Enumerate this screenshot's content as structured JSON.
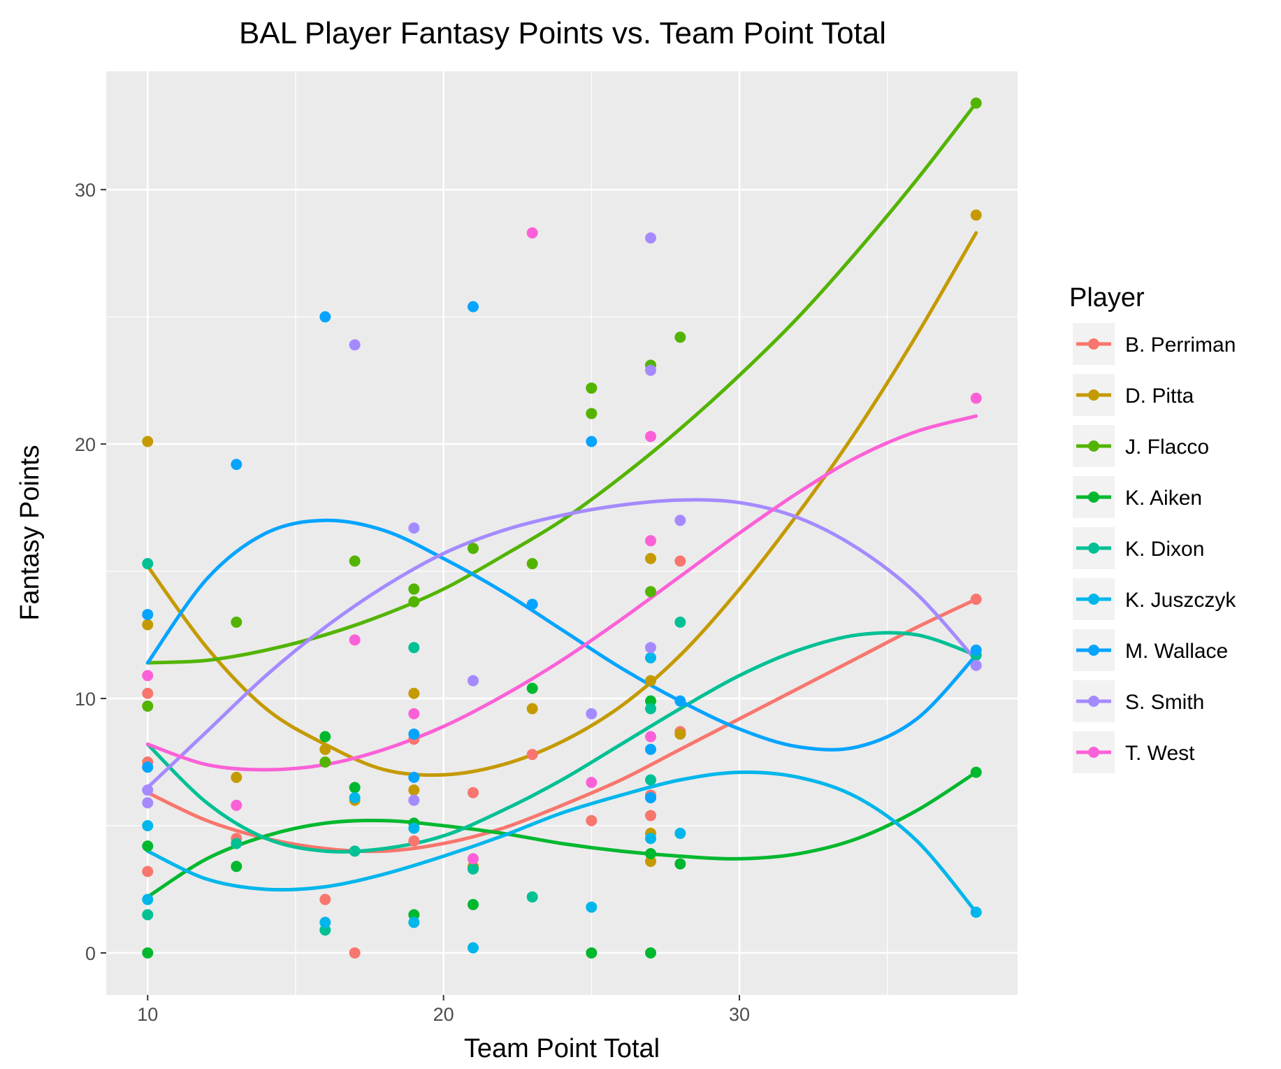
{
  "chart_data": {
    "type": "scatter",
    "title": "BAL Player Fantasy Points vs. Team Point Total",
    "xlabel": "Team Point Total",
    "ylabel": "Fantasy Points",
    "xlim": [
      8.6,
      39.4
    ],
    "ylim": [
      -1.65,
      34.65
    ],
    "xticks": [
      10,
      20,
      30
    ],
    "yticks": [
      0,
      10,
      20,
      30
    ],
    "grid": true,
    "legend": {
      "title": "Player",
      "placement": "right"
    },
    "series": [
      {
        "name": "B. Perriman",
        "color": "#F8766D",
        "points": [
          [
            10,
            10.2
          ],
          [
            10,
            7.5
          ],
          [
            10,
            3.2
          ],
          [
            13,
            4.5
          ],
          [
            16,
            2.1
          ],
          [
            17,
            0
          ],
          [
            19,
            8.4
          ],
          [
            19,
            4.4
          ],
          [
            21,
            6.3
          ],
          [
            23,
            7.8
          ],
          [
            25,
            5.2
          ],
          [
            27,
            6.2
          ],
          [
            27,
            5.4
          ],
          [
            28,
            15.4
          ],
          [
            28,
            8.7
          ],
          [
            38,
            13.9
          ]
        ],
        "fit": [
          [
            10,
            6.3
          ],
          [
            12,
            5.2
          ],
          [
            14,
            4.5
          ],
          [
            16,
            4.1
          ],
          [
            18,
            4.0
          ],
          [
            20,
            4.3
          ],
          [
            22,
            4.9
          ],
          [
            24,
            5.8
          ],
          [
            26,
            6.8
          ],
          [
            28,
            8.0
          ],
          [
            30,
            9.2
          ],
          [
            32,
            10.4
          ],
          [
            34,
            11.6
          ],
          [
            36,
            12.8
          ],
          [
            38,
            13.9
          ]
        ]
      },
      {
        "name": "D. Pitta",
        "color": "#C49A00",
        "points": [
          [
            10,
            20.1
          ],
          [
            10,
            12.9
          ],
          [
            13,
            6.9
          ],
          [
            16,
            8.0
          ],
          [
            17,
            6.0
          ],
          [
            19,
            10.2
          ],
          [
            19,
            6.4
          ],
          [
            21,
            3.4
          ],
          [
            23,
            9.6
          ],
          [
            25,
            22.2
          ],
          [
            27,
            15.5
          ],
          [
            27,
            10.7
          ],
          [
            27,
            4.7
          ],
          [
            27,
            3.6
          ],
          [
            28,
            8.6
          ],
          [
            38,
            29.0
          ]
        ],
        "fit": [
          [
            10,
            15.2
          ],
          [
            12,
            12.0
          ],
          [
            14,
            9.6
          ],
          [
            16,
            8.2
          ],
          [
            18,
            7.2
          ],
          [
            20,
            7.0
          ],
          [
            22,
            7.4
          ],
          [
            24,
            8.3
          ],
          [
            26,
            9.7
          ],
          [
            28,
            11.7
          ],
          [
            30,
            14.3
          ],
          [
            32,
            17.3
          ],
          [
            34,
            20.6
          ],
          [
            36,
            24.3
          ],
          [
            38,
            28.3
          ]
        ]
      },
      {
        "name": "J. Flacco",
        "color": "#53B400",
        "points": [
          [
            10,
            9.7
          ],
          [
            13,
            13.0
          ],
          [
            16,
            7.5
          ],
          [
            17,
            15.4
          ],
          [
            19,
            14.3
          ],
          [
            19,
            13.8
          ],
          [
            21,
            15.9
          ],
          [
            23,
            15.3
          ],
          [
            25,
            22.2
          ],
          [
            25,
            21.2
          ],
          [
            27,
            23.1
          ],
          [
            27,
            14.2
          ],
          [
            28,
            24.2
          ],
          [
            38,
            33.4
          ]
        ],
        "fit": [
          [
            10,
            11.4
          ],
          [
            12,
            11.5
          ],
          [
            14,
            11.9
          ],
          [
            16,
            12.5
          ],
          [
            18,
            13.3
          ],
          [
            20,
            14.3
          ],
          [
            22,
            15.6
          ],
          [
            24,
            17.0
          ],
          [
            26,
            18.7
          ],
          [
            28,
            20.6
          ],
          [
            30,
            22.7
          ],
          [
            32,
            25.0
          ],
          [
            34,
            27.6
          ],
          [
            36,
            30.4
          ],
          [
            38,
            33.4
          ]
        ]
      },
      {
        "name": "K. Aiken",
        "color": "#00B82E",
        "points": [
          [
            10,
            4.2
          ],
          [
            10,
            0
          ],
          [
            13,
            3.4
          ],
          [
            16,
            8.5
          ],
          [
            17,
            6.5
          ],
          [
            19,
            5.1
          ],
          [
            19,
            1.5
          ],
          [
            21,
            1.9
          ],
          [
            23,
            10.4
          ],
          [
            25,
            0
          ],
          [
            27,
            9.9
          ],
          [
            27,
            3.9
          ],
          [
            27,
            0
          ],
          [
            28,
            3.5
          ],
          [
            38,
            7.1
          ]
        ],
        "fit": [
          [
            10,
            2.2
          ],
          [
            12,
            3.7
          ],
          [
            14,
            4.6
          ],
          [
            16,
            5.1
          ],
          [
            18,
            5.2
          ],
          [
            20,
            5.0
          ],
          [
            22,
            4.7
          ],
          [
            24,
            4.3
          ],
          [
            26,
            4.0
          ],
          [
            28,
            3.8
          ],
          [
            30,
            3.7
          ],
          [
            32,
            3.9
          ],
          [
            34,
            4.5
          ],
          [
            36,
            5.6
          ],
          [
            38,
            7.1
          ]
        ]
      },
      {
        "name": "K. Dixon",
        "color": "#00C094",
        "points": [
          [
            10,
            15.3
          ],
          [
            10,
            1.5
          ],
          [
            13,
            4.3
          ],
          [
            16,
            0.9
          ],
          [
            17,
            4.0
          ],
          [
            19,
            12.0
          ],
          [
            21,
            3.3
          ],
          [
            23,
            2.2
          ],
          [
            27,
            9.6
          ],
          [
            27,
            6.8
          ],
          [
            28,
            13.0
          ],
          [
            38,
            11.7
          ]
        ],
        "fit": [
          [
            10,
            8.2
          ],
          [
            12,
            5.9
          ],
          [
            14,
            4.5
          ],
          [
            16,
            4.0
          ],
          [
            18,
            4.1
          ],
          [
            20,
            4.6
          ],
          [
            22,
            5.6
          ],
          [
            24,
            6.8
          ],
          [
            26,
            8.2
          ],
          [
            28,
            9.6
          ],
          [
            30,
            10.9
          ],
          [
            32,
            11.9
          ],
          [
            34,
            12.5
          ],
          [
            36,
            12.5
          ],
          [
            38,
            11.7
          ]
        ]
      },
      {
        "name": "K. Juszczyk",
        "color": "#00B6EB",
        "points": [
          [
            10,
            5.0
          ],
          [
            10,
            2.1
          ],
          [
            16,
            1.2
          ],
          [
            17,
            6.1
          ],
          [
            19,
            4.9
          ],
          [
            19,
            1.2
          ],
          [
            21,
            0.2
          ],
          [
            25,
            1.8
          ],
          [
            27,
            11.6
          ],
          [
            27,
            4.5
          ],
          [
            28,
            4.7
          ],
          [
            38,
            1.6
          ]
        ],
        "fit": [
          [
            10,
            4.0
          ],
          [
            12,
            2.9
          ],
          [
            14,
            2.5
          ],
          [
            16,
            2.6
          ],
          [
            18,
            3.1
          ],
          [
            20,
            3.8
          ],
          [
            22,
            4.6
          ],
          [
            24,
            5.5
          ],
          [
            26,
            6.2
          ],
          [
            28,
            6.8
          ],
          [
            30,
            7.1
          ],
          [
            32,
            6.9
          ],
          [
            34,
            6.1
          ],
          [
            36,
            4.4
          ],
          [
            38,
            1.6
          ]
        ]
      },
      {
        "name": "M. Wallace",
        "color": "#06A4FF",
        "points": [
          [
            10,
            13.3
          ],
          [
            10,
            7.3
          ],
          [
            13,
            19.2
          ],
          [
            16,
            25.0
          ],
          [
            19,
            8.6
          ],
          [
            19,
            6.9
          ],
          [
            21,
            25.4
          ],
          [
            23,
            13.7
          ],
          [
            25,
            20.1
          ],
          [
            27,
            8.0
          ],
          [
            27,
            6.1
          ],
          [
            28,
            9.9
          ],
          [
            38,
            11.9
          ]
        ],
        "fit": [
          [
            10,
            11.4
          ],
          [
            12,
            14.7
          ],
          [
            14,
            16.5
          ],
          [
            16,
            17.0
          ],
          [
            18,
            16.6
          ],
          [
            20,
            15.5
          ],
          [
            22,
            14.2
          ],
          [
            24,
            12.7
          ],
          [
            26,
            11.2
          ],
          [
            28,
            9.9
          ],
          [
            30,
            8.8
          ],
          [
            32,
            8.1
          ],
          [
            34,
            8.1
          ],
          [
            36,
            9.2
          ],
          [
            38,
            11.7
          ]
        ]
      },
      {
        "name": "S. Smith",
        "color": "#A58AFF",
        "points": [
          [
            10,
            6.4
          ],
          [
            10,
            5.9
          ],
          [
            17,
            23.9
          ],
          [
            19,
            16.7
          ],
          [
            19,
            6.0
          ],
          [
            21,
            10.7
          ],
          [
            25,
            9.4
          ],
          [
            27,
            28.1
          ],
          [
            27,
            22.9
          ],
          [
            27,
            12.0
          ],
          [
            28,
            17.0
          ],
          [
            38,
            11.3
          ]
        ],
        "fit": [
          [
            10,
            6.5
          ],
          [
            12,
            8.7
          ],
          [
            14,
            10.9
          ],
          [
            16,
            12.8
          ],
          [
            18,
            14.4
          ],
          [
            20,
            15.7
          ],
          [
            22,
            16.6
          ],
          [
            24,
            17.2
          ],
          [
            26,
            17.6
          ],
          [
            28,
            17.8
          ],
          [
            30,
            17.7
          ],
          [
            32,
            17.1
          ],
          [
            34,
            15.9
          ],
          [
            36,
            14.1
          ],
          [
            38,
            11.5
          ]
        ]
      },
      {
        "name": "T. West",
        "color": "#FB61D7",
        "points": [
          [
            10,
            10.9
          ],
          [
            13,
            5.8
          ],
          [
            17,
            12.3
          ],
          [
            19,
            9.4
          ],
          [
            21,
            3.7
          ],
          [
            23,
            28.3
          ],
          [
            25,
            6.7
          ],
          [
            27,
            20.3
          ],
          [
            27,
            16.2
          ],
          [
            27,
            8.5
          ],
          [
            38,
            21.8
          ]
        ],
        "fit": [
          [
            10,
            8.2
          ],
          [
            12,
            7.4
          ],
          [
            14,
            7.2
          ],
          [
            16,
            7.4
          ],
          [
            18,
            8.0
          ],
          [
            20,
            8.9
          ],
          [
            22,
            10.1
          ],
          [
            24,
            11.5
          ],
          [
            26,
            13.1
          ],
          [
            28,
            14.8
          ],
          [
            30,
            16.5
          ],
          [
            32,
            18.1
          ],
          [
            34,
            19.5
          ],
          [
            36,
            20.5
          ],
          [
            38,
            21.1
          ]
        ]
      }
    ]
  }
}
